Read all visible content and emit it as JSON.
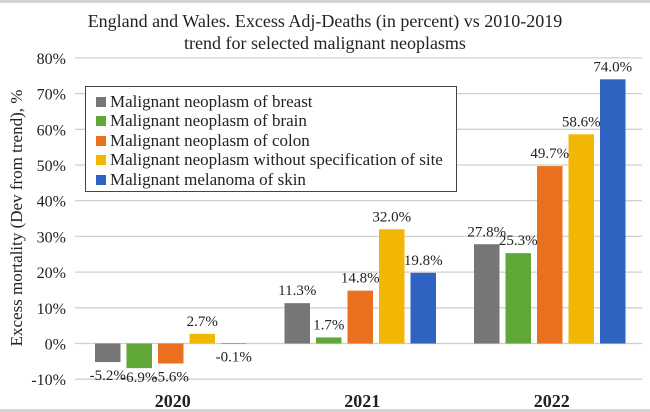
{
  "chart_data": {
    "type": "bar",
    "title": "England and Wales. Excess Adj-Deaths (in percent) vs 2010-2019 trend for selected malignant neoplasms",
    "title_lines": [
      "England and Wales. Excess Adj-Deaths (in percent) vs 2010-2019",
      "trend for selected malignant neoplasms"
    ],
    "xlabel": "",
    "ylabel": "Excess mortality (Dev from trend), %",
    "ylim": [
      -10,
      80
    ],
    "yticks": [
      -10,
      0,
      10,
      20,
      30,
      40,
      50,
      60,
      70,
      80
    ],
    "ytick_labels": [
      "-10%",
      "0%",
      "10%",
      "20%",
      "30%",
      "40%",
      "50%",
      "60%",
      "70%",
      "80%"
    ],
    "grid": true,
    "legend_position": "top-left",
    "categories": [
      "2020",
      "2021",
      "2022"
    ],
    "series": [
      {
        "name": "Malignant neoplasm of breast",
        "color": "#767676",
        "values": [
          -5.2,
          11.3,
          27.8
        ],
        "labels": [
          "-5.2%",
          "11.3%",
          "27.8%"
        ]
      },
      {
        "name": "Malignant neoplasm of brain",
        "color": "#5fa737",
        "values": [
          -6.9,
          1.7,
          25.3
        ],
        "labels": [
          "-6.9%",
          "1.7%",
          "25.3%"
        ]
      },
      {
        "name": "Malignant neoplasm of colon",
        "color": "#e8701f",
        "values": [
          -5.6,
          14.8,
          49.7
        ],
        "labels": [
          "-5.6%",
          "14.8%",
          "49.7%"
        ]
      },
      {
        "name": "Malignant neoplasm without specification of site",
        "color": "#f2b705",
        "values": [
          2.7,
          32.0,
          58.6
        ],
        "labels": [
          "2.7%",
          "32.0%",
          "58.6%"
        ]
      },
      {
        "name": "Malignant melanoma of skin",
        "color": "#2e63c2",
        "values": [
          -0.1,
          19.8,
          74.0
        ],
        "labels": [
          "-0.1%",
          "19.8%",
          "74.0%"
        ]
      }
    ]
  }
}
